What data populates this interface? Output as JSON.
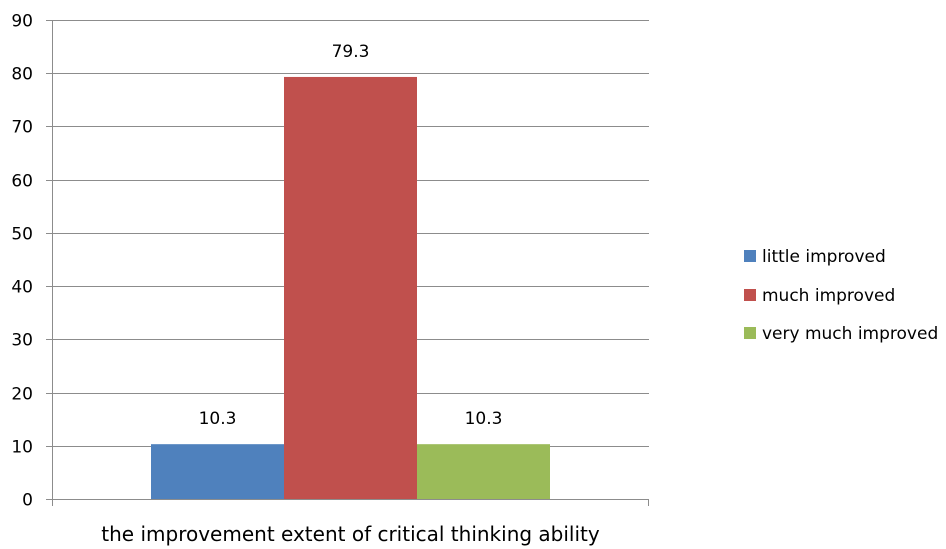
{
  "chart_data": {
    "type": "bar",
    "categories": [
      "the improvement extent of critical thinking ability"
    ],
    "series": [
      {
        "name": "little improved",
        "values": [
          10.3
        ],
        "color": "#4F81BD"
      },
      {
        "name": "much improved",
        "values": [
          79.3
        ],
        "color": "#C0504D"
      },
      {
        "name": "very much improved",
        "values": [
          10.3
        ],
        "color": "#9BBB59"
      }
    ],
    "data_labels": [
      "10.3",
      "79.3",
      "10.3"
    ],
    "title": "",
    "xlabel": "",
    "ylabel": "",
    "ylim": [
      0,
      90
    ],
    "yticks": [
      0,
      10,
      20,
      30,
      40,
      50,
      60,
      70,
      80,
      90
    ],
    "grid": true,
    "legend_position": "right"
  }
}
